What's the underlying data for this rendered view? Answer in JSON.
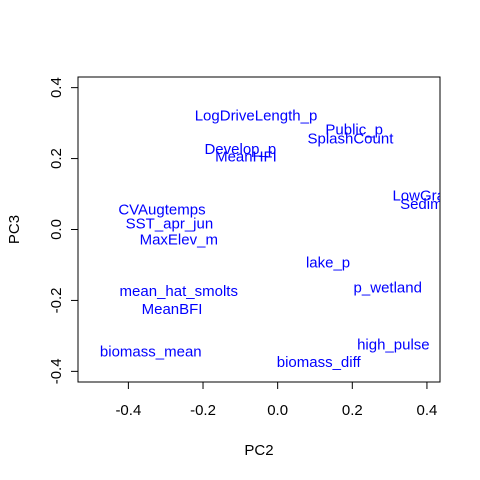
{
  "chart_data": {
    "type": "scatter",
    "xlabel": "PC2",
    "ylabel": "PC3",
    "xlim": [
      -0.535,
      0.435
    ],
    "ylim": [
      -0.43,
      0.43
    ],
    "x_ticks": [
      {
        "value": -0.4,
        "label": "-0.4"
      },
      {
        "value": -0.2,
        "label": "-0.2"
      },
      {
        "value": 0.0,
        "label": "0.0"
      },
      {
        "value": 0.2,
        "label": "0.2"
      },
      {
        "value": 0.4,
        "label": "0.4"
      }
    ],
    "y_ticks": [
      {
        "value": -0.4,
        "label": "-0.4"
      },
      {
        "value": -0.2,
        "label": "-0.2"
      },
      {
        "value": 0.0,
        "label": "0.0"
      },
      {
        "value": 0.2,
        "label": "0.2"
      },
      {
        "value": 0.4,
        "label": "0.4"
      }
    ],
    "label_color": "#0000ff",
    "grid": false,
    "points": [
      {
        "label": "LogDriveLength_p",
        "x": -0.058,
        "y": 0.32
      },
      {
        "label": "Public_p",
        "x": 0.205,
        "y": 0.28
      },
      {
        "label": "SplashCount",
        "x": 0.195,
        "y": 0.255
      },
      {
        "label": "Develop_p",
        "x": -0.1,
        "y": 0.225
      },
      {
        "label": "MeanHFI",
        "x": -0.085,
        "y": 0.205
      },
      {
        "label": "LowGra",
        "x": 0.378,
        "y": 0.095
      },
      {
        "label": "Sedim",
        "x": 0.385,
        "y": 0.07
      },
      {
        "label": "CVAugtemps",
        "x": -0.31,
        "y": 0.055
      },
      {
        "label": "SST_apr_jun",
        "x": -0.29,
        "y": 0.015
      },
      {
        "label": "MaxElev_m",
        "x": -0.265,
        "y": -0.03
      },
      {
        "label": "lake_p",
        "x": 0.135,
        "y": -0.095
      },
      {
        "label": "p_wetland",
        "x": 0.295,
        "y": -0.165
      },
      {
        "label": "mean_hat_smolts",
        "x": -0.265,
        "y": -0.175
      },
      {
        "label": "MeanBFI",
        "x": -0.283,
        "y": -0.225
      },
      {
        "label": "high_pulse",
        "x": 0.31,
        "y": -0.325
      },
      {
        "label": "biomass_mean",
        "x": -0.34,
        "y": -0.345
      },
      {
        "label": "biomass_diff",
        "x": 0.11,
        "y": -0.375
      }
    ]
  }
}
